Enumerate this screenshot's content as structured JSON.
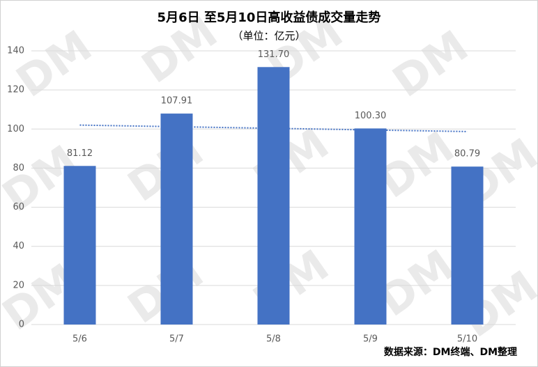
{
  "chart_data": {
    "type": "bar",
    "title": "5月6日 至5月10日高收益债成交量走势",
    "subtitle": "（单位：亿元）",
    "categories": [
      "5/6",
      "5/7",
      "5/8",
      "5/9",
      "5/10"
    ],
    "values": [
      81.12,
      107.91,
      131.7,
      100.3,
      80.79
    ],
    "value_labels": [
      "81.12",
      "107.91",
      "131.70",
      "100.30",
      "80.79"
    ],
    "color": "#4472c4",
    "ylim": [
      0,
      140
    ],
    "yticks": [
      0,
      20,
      40,
      60,
      80,
      100,
      120,
      140
    ],
    "grid": true,
    "trendline": "linear",
    "source": "数据来源：DM终端、DM整理",
    "watermark": "DM"
  }
}
